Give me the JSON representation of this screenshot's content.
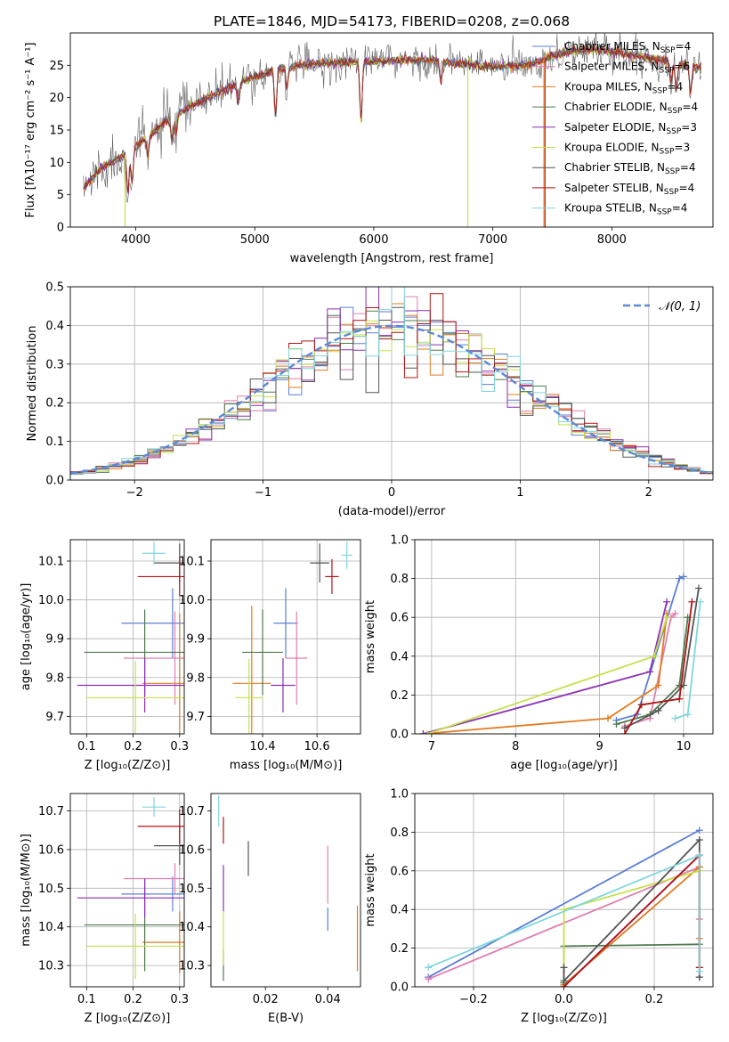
{
  "figure_title": "PLATE=1846, MJD=54173, FIBERID=0208, z=0.068",
  "colors": {
    "Chabrier MILES": "#5b7fd6",
    "Salpeter MILES": "#e07fb0",
    "Kroupa MILES": "#e07b20",
    "Chabrier ELODIE": "#4f7a4f",
    "Salpeter ELODIE": "#8a2fb5",
    "Kroupa ELODIE": "#c8e04a",
    "Chabrier STELIB": "#555555",
    "Salpeter STELIB": "#b01515",
    "Kroupa STELIB": "#7fd6dc"
  },
  "chart_data": [
    {
      "type": "line",
      "title": "PLATE=1846, MJD=54173, FIBERID=0208, z=0.068",
      "xlabel": "wavelength [Angstrom, rest frame]",
      "ylabel": "Flux [fλ10⁻¹⁷ erg cm⁻² s⁻¹ A⁻¹]",
      "xlim": [
        3450,
        8850
      ],
      "ylim": [
        0,
        30
      ],
      "xticks": [
        4000,
        5000,
        6000,
        7000,
        8000
      ],
      "yticks": [
        0,
        5,
        10,
        15,
        20,
        25
      ],
      "grid": false,
      "legend_position": "right",
      "legend": [
        {
          "label": "Chabrier MILES, N",
          "sub": "SSP",
          "val": "=4"
        },
        {
          "label": "Salpeter MILES, N",
          "sub": "SSP",
          "val": "=6"
        },
        {
          "label": "Kroupa MILES, N",
          "sub": "SSP",
          "val": "=4"
        },
        {
          "label": "Chabrier ELODIE, N",
          "sub": "SSP",
          "val": "=4"
        },
        {
          "label": "Salpeter ELODIE, N",
          "sub": "SSP",
          "val": "=3"
        },
        {
          "label": "Kroupa ELODIE, N",
          "sub": "SSP",
          "val": "=3"
        },
        {
          "label": "Chabrier STELIB, N",
          "sub": "SSP",
          "val": "=4"
        },
        {
          "label": "Salpeter STELIB, N",
          "sub": "SSP",
          "val": "=4"
        },
        {
          "label": "Kroupa STELIB, N",
          "sub": "SSP",
          "val": "=4"
        }
      ],
      "continuum": {
        "x": [
          3560,
          3700,
          3900,
          4100,
          4300,
          4600,
          4900,
          5200,
          5500,
          5800,
          6100,
          6400,
          6700,
          7000,
          7300,
          7600,
          7900,
          8200,
          8500,
          8750
        ],
        "y": [
          6,
          9,
          11,
          14,
          17,
          20,
          22.5,
          24.5,
          25.2,
          25.5,
          25.7,
          25.8,
          25.3,
          24.8,
          25,
          27,
          27.5,
          26.5,
          25.5,
          24.5
        ]
      },
      "absorption_lines": [
        {
          "x": 3934,
          "depth": 6
        },
        {
          "x": 3969,
          "depth": 5
        },
        {
          "x": 4102,
          "depth": 3
        },
        {
          "x": 4305,
          "depth": 4
        },
        {
          "x": 4340,
          "depth": 3
        },
        {
          "x": 4861,
          "depth": 3
        },
        {
          "x": 5175,
          "depth": 7
        },
        {
          "x": 5270,
          "depth": 3
        },
        {
          "x": 5893,
          "depth": 9
        },
        {
          "x": 6563,
          "depth": 3
        },
        {
          "x": 8498,
          "depth": 3
        },
        {
          "x": 8542,
          "depth": 4
        },
        {
          "x": 8662,
          "depth": 4
        }
      ],
      "dropouts": [
        3910,
        6790,
        7430
      ]
    },
    {
      "type": "histogram",
      "xlabel": "(data-model)/error",
      "ylabel": "Normed distribution",
      "xlim": [
        -2.5,
        2.5
      ],
      "ylim": [
        0,
        0.5
      ],
      "xticks": [
        -2,
        -1,
        0,
        1,
        2
      ],
      "xtick_labels": [
        "−2",
        "−1",
        "0",
        "1",
        "2"
      ],
      "yticks": [
        0,
        0.1,
        0.2,
        0.3,
        0.4,
        0.5
      ],
      "grid": true,
      "legend_position": "upper right",
      "reference_label": "𝒩(0, 1)",
      "bin_width": 0.1
    },
    {
      "type": "scatter",
      "xlabel": "Z [log₁₀(Z/Z⊙)]",
      "ylabel": "age  [log₁₀(age/yr)]",
      "xlim": [
        0.065,
        0.31
      ],
      "ylim": [
        9.655,
        10.155
      ],
      "xticks": [
        0.1,
        0.2,
        0.3
      ],
      "yticks": [
        9.7,
        9.8,
        9.9,
        10.0,
        10.1
      ],
      "grid": true,
      "points": [
        {
          "series": "Chabrier MILES",
          "x": 0.285,
          "xerr": 0.11,
          "y": 9.94,
          "yerr": 0.09
        },
        {
          "series": "Salpeter MILES",
          "x": 0.29,
          "xerr": 0.11,
          "y": 9.85,
          "yerr": 0.12
        },
        {
          "series": "Kroupa MILES",
          "x": 0.3,
          "xerr": 0.08,
          "y": 9.785,
          "yerr": 0.18
        },
        {
          "series": "Chabrier ELODIE",
          "x": 0.225,
          "xerr": 0.13,
          "y": 9.865,
          "yerr": 0.11
        },
        {
          "series": "Salpeter ELODIE",
          "x": 0.225,
          "xerr": 0.145,
          "y": 9.78,
          "yerr": 0.07
        },
        {
          "series": "Kroupa ELODIE",
          "x": 0.205,
          "xerr": 0.105,
          "y": 9.748,
          "yerr": 0.095
        },
        {
          "series": "Chabrier STELIB",
          "x": 0.3,
          "xerr": 0.055,
          "y": 10.095,
          "yerr": 0.05
        },
        {
          "series": "Salpeter STELIB",
          "x": 0.3,
          "xerr": 0.09,
          "y": 10.06,
          "yerr": 0.05
        },
        {
          "series": "Kroupa STELIB",
          "x": 0.245,
          "xerr": 0.025,
          "y": 10.12,
          "yerr": 0.03
        }
      ]
    },
    {
      "type": "scatter",
      "xlabel": "mass [log₁₀(M/M⊙)]",
      "ylabel": "",
      "xlim": [
        10.21,
        10.76
      ],
      "ylim": [
        9.655,
        10.155
      ],
      "xticks": [
        10.4,
        10.6
      ],
      "yticks": [
        9.7,
        9.8,
        9.9,
        10.0,
        10.1
      ],
      "grid": true,
      "points": [
        {
          "series": "Chabrier MILES",
          "x": 10.485,
          "xerr": 0.045,
          "y": 9.94,
          "yerr": 0.09
        },
        {
          "series": "Salpeter MILES",
          "x": 10.525,
          "xerr": 0.04,
          "y": 9.85,
          "yerr": 0.12
        },
        {
          "series": "Kroupa MILES",
          "x": 10.36,
          "xerr": 0.07,
          "y": 9.785,
          "yerr": 0.2
        },
        {
          "series": "Chabrier ELODIE",
          "x": 10.4,
          "xerr": 0.075,
          "y": 9.865,
          "yerr": 0.11
        },
        {
          "series": "Salpeter ELODIE",
          "x": 10.475,
          "xerr": 0.045,
          "y": 9.78,
          "yerr": 0.07
        },
        {
          "series": "Kroupa ELODIE",
          "x": 10.35,
          "xerr": 0.05,
          "y": 9.748,
          "yerr": 0.1
        },
        {
          "series": "Chabrier STELIB",
          "x": 10.61,
          "xerr": 0.035,
          "y": 10.095,
          "yerr": 0.05
        },
        {
          "series": "Salpeter STELIB",
          "x": 10.655,
          "xerr": 0.025,
          "y": 10.06,
          "yerr": 0.045
        },
        {
          "series": "Kroupa STELIB",
          "x": 10.71,
          "xerr": 0.02,
          "y": 10.115,
          "yerr": 0.035
        }
      ]
    },
    {
      "type": "line",
      "xlabel": "age  [log₁₀(age/yr)]",
      "ylabel": "mass weight",
      "xlim": [
        6.8,
        10.35
      ],
      "ylim": [
        0,
        1.0
      ],
      "xticks": [
        7,
        8,
        9,
        10
      ],
      "yticks": [
        0,
        0.2,
        0.4,
        0.6,
        0.8,
        1.0
      ],
      "grid": true,
      "series": [
        {
          "name": "Chabrier MILES",
          "x": [
            9.2,
            9.45,
            9.95,
            10.0
          ],
          "y": [
            0.07,
            0.1,
            0.8,
            0.81
          ]
        },
        {
          "name": "Salpeter MILES",
          "x": [
            9.3,
            9.6,
            9.85,
            9.9
          ],
          "y": [
            0.04,
            0.08,
            0.6,
            0.62
          ]
        },
        {
          "name": "Kroupa MILES",
          "x": [
            6.9,
            9.1,
            9.7,
            9.8
          ],
          "y": [
            0.0,
            0.08,
            0.25,
            0.62
          ]
        },
        {
          "name": "Chabrier ELODIE",
          "x": [
            9.2,
            9.6,
            9.95,
            10.05
          ],
          "y": [
            0.05,
            0.1,
            0.25,
            0.6
          ]
        },
        {
          "name": "Salpeter ELODIE",
          "x": [
            6.9,
            9.6,
            9.8
          ],
          "y": [
            0.0,
            0.32,
            0.68
          ]
        },
        {
          "name": "Kroupa ELODIE",
          "x": [
            6.95,
            9.65,
            9.8
          ],
          "y": [
            0.0,
            0.4,
            0.6
          ]
        },
        {
          "name": "Chabrier STELIB",
          "x": [
            9.3,
            9.7,
            10.0,
            10.18
          ],
          "y": [
            0.03,
            0.12,
            0.25,
            0.75
          ]
        },
        {
          "name": "Salpeter STELIB",
          "x": [
            9.3,
            9.5,
            9.95,
            10.1
          ],
          "y": [
            0.0,
            0.15,
            0.18,
            0.68
          ]
        },
        {
          "name": "Kroupa STELIB",
          "x": [
            9.9,
            10.05,
            10.2
          ],
          "y": [
            0.08,
            0.1,
            0.68
          ]
        }
      ]
    },
    {
      "type": "scatter",
      "xlabel": "Z [log₁₀(Z/Z⊙)]",
      "ylabel": "mass [log₁₀(M/M⊙)]",
      "xlim": [
        0.065,
        0.31
      ],
      "ylim": [
        10.245,
        10.745
      ],
      "xticks": [
        0.1,
        0.2,
        0.3
      ],
      "yticks": [
        10.3,
        10.4,
        10.5,
        10.6,
        10.7
      ],
      "grid": true,
      "points": [
        {
          "series": "Chabrier MILES",
          "x": 0.285,
          "xerr": 0.11,
          "y": 10.485,
          "yerr": 0.045
        },
        {
          "series": "Salpeter MILES",
          "x": 0.29,
          "xerr": 0.11,
          "y": 10.525,
          "yerr": 0.04
        },
        {
          "series": "Kroupa MILES",
          "x": 0.3,
          "xerr": 0.08,
          "y": 10.36,
          "yerr": 0.08
        },
        {
          "series": "Chabrier ELODIE",
          "x": 0.225,
          "xerr": 0.13,
          "y": 10.405,
          "yerr": 0.12
        },
        {
          "series": "Salpeter ELODIE",
          "x": 0.225,
          "xerr": 0.145,
          "y": 10.475,
          "yerr": 0.05
        },
        {
          "series": "Kroupa ELODIE",
          "x": 0.205,
          "xerr": 0.105,
          "y": 10.35,
          "yerr": 0.085
        },
        {
          "series": "Chabrier STELIB",
          "x": 0.3,
          "xerr": 0.055,
          "y": 10.61,
          "yerr": 0.05
        },
        {
          "series": "Salpeter STELIB",
          "x": 0.3,
          "xerr": 0.09,
          "y": 10.66,
          "yerr": 0.045
        },
        {
          "series": "Kroupa STELIB",
          "x": 0.245,
          "xerr": 0.025,
          "y": 10.71,
          "yerr": 0.025
        }
      ]
    },
    {
      "type": "scatter",
      "xlabel": "E(B-V)",
      "ylabel": "",
      "xlim": [
        0.0025,
        0.0505
      ],
      "ylim": [
        10.245,
        10.745
      ],
      "xticks": [
        0.02,
        0.04
      ],
      "yticks": [
        10.3,
        10.4,
        10.5,
        10.6,
        10.7
      ],
      "grid": false,
      "points": [
        {
          "series": "Chabrier MILES",
          "x": 0.04,
          "xerr": 0,
          "y": 10.42,
          "yerr": 0.03
        },
        {
          "series": "Salpeter MILES",
          "x": 0.04,
          "xerr": 0,
          "y": 10.535,
          "yerr": 0.075
        },
        {
          "series": "Kroupa MILES",
          "x": 0.0495,
          "xerr": 0,
          "y": 10.37,
          "yerr": 0.085
        },
        {
          "series": "Chabrier ELODIE",
          "x": 0.0065,
          "xerr": 0,
          "y": 10.3,
          "yerr": 0.04
        },
        {
          "series": "Salpeter ELODIE",
          "x": 0.0065,
          "xerr": 0,
          "y": 10.5,
          "yerr": 0.06
        },
        {
          "series": "Kroupa ELODIE",
          "x": 0.0065,
          "xerr": 0,
          "y": 10.37,
          "yerr": 0.07
        },
        {
          "series": "Chabrier STELIB",
          "x": 0.0145,
          "xerr": 0,
          "y": 10.577,
          "yerr": 0.045
        },
        {
          "series": "Salpeter STELIB",
          "x": 0.0065,
          "xerr": 0,
          "y": 10.65,
          "yerr": 0.035
        },
        {
          "series": "Kroupa STELIB",
          "x": 0.005,
          "xerr": 0,
          "y": 10.7,
          "yerr": 0.04
        }
      ]
    },
    {
      "type": "line",
      "xlabel": "Z [log₁₀(Z/Z⊙)]",
      "ylabel": "mass weight",
      "xlim": [
        -0.33,
        0.33
      ],
      "ylim": [
        0,
        1.0
      ],
      "xticks": [
        -0.2,
        0.0,
        0.2
      ],
      "xtick_labels": [
        "−0.2",
        "0.0",
        "0.2"
      ],
      "yticks": [
        0,
        0.2,
        0.4,
        0.6,
        0.8,
        1.0
      ],
      "grid": true,
      "series": [
        {
          "name": "Chabrier MILES",
          "x": [
            -0.3,
            0.3
          ],
          "y": [
            0.05,
            0.81
          ]
        },
        {
          "name": "Salpeter MILES",
          "x": [
            -0.3,
            0.3,
            0.3
          ],
          "y": [
            0.04,
            0.62,
            0.35
          ]
        },
        {
          "name": "Kroupa MILES",
          "x": [
            0.0,
            0.0,
            0.3,
            0.3
          ],
          "y": [
            0.0,
            0.01,
            0.62,
            0.25
          ]
        },
        {
          "name": "Chabrier ELODIE",
          "x": [
            0.0,
            0.0,
            0.3
          ],
          "y": [
            0.02,
            0.21,
            0.22
          ]
        },
        {
          "name": "Salpeter ELODIE",
          "x": [
            0.0,
            0.3,
            0.3
          ],
          "y": [
            0.0,
            0.68,
            0.05
          ]
        },
        {
          "name": "Kroupa ELODIE",
          "x": [
            0.0,
            0.0,
            0.3
          ],
          "y": [
            0.0,
            0.4,
            0.6
          ]
        },
        {
          "name": "Chabrier STELIB",
          "x": [
            0.0,
            0.0,
            0.3,
            0.3
          ],
          "y": [
            0.1,
            0.03,
            0.76,
            0.05
          ]
        },
        {
          "name": "Salpeter STELIB",
          "x": [
            0.0,
            0.3,
            0.3
          ],
          "y": [
            0.0,
            0.68,
            0.1
          ]
        },
        {
          "name": "Kroupa STELIB",
          "x": [
            -0.3,
            0.3,
            0.3
          ],
          "y": [
            0.1,
            0.68,
            0.08
          ]
        }
      ]
    }
  ]
}
